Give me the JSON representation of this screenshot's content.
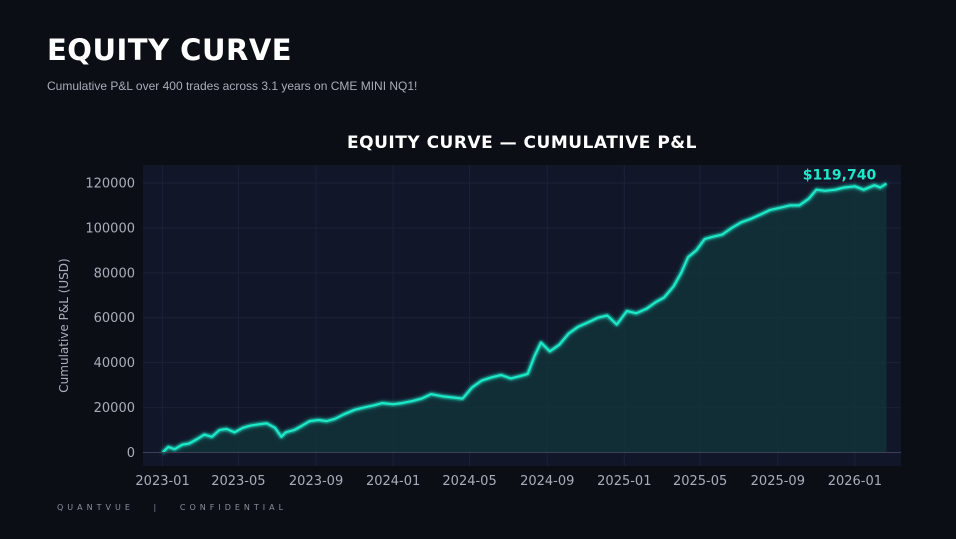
{
  "header": {
    "title": "EQUITY CURVE",
    "subtitle": "Cumulative P&L over 400 trades across 3.1 years on CME MINI NQ1!"
  },
  "footer": {
    "brand": "QUANTVUE",
    "separator": "|",
    "tag": "CONFIDENTIAL"
  },
  "colors": {
    "background": "#0b0e15",
    "plot_background": "#121629",
    "line": "#1de9c8",
    "fill": "#123338",
    "grid": "#1c2236",
    "tick_label": "#a9adb8",
    "annotation": "#1de9c8"
  },
  "chart_data": {
    "type": "line",
    "title": "EQUITY CURVE — CUMULATIVE P&L",
    "xlabel": "",
    "ylabel": "Cumulative P&L (USD)",
    "x_ticks": [
      "2023-01",
      "2023-05",
      "2023-09",
      "2024-01",
      "2024-05",
      "2024-09",
      "2025-01",
      "2025-05",
      "2025-09",
      "2026-01"
    ],
    "y_ticks": [
      0,
      20000,
      40000,
      60000,
      80000,
      100000,
      120000
    ],
    "xlim": [
      "2022-12-01",
      "2026-03-15"
    ],
    "ylim": [
      -6000,
      128000
    ],
    "grid": true,
    "fill_under": true,
    "final_annotation": "$119,740",
    "series": [
      {
        "x": [
          "2023-01-01",
          "2023-01-10",
          "2023-01-20",
          "2023-02-01",
          "2023-02-12",
          "2023-02-25",
          "2023-03-08",
          "2023-03-20",
          "2023-04-01",
          "2023-04-12",
          "2023-04-25",
          "2023-05-08",
          "2023-05-20",
          "2023-06-01",
          "2023-06-15",
          "2023-06-28",
          "2023-07-08",
          "2023-07-15",
          "2023-07-28",
          "2023-08-10",
          "2023-08-22",
          "2023-09-05",
          "2023-09-18",
          "2023-10-01",
          "2023-10-15",
          "2023-11-01",
          "2023-11-15",
          "2023-12-01",
          "2023-12-15",
          "2024-01-01",
          "2024-01-15",
          "2024-02-01",
          "2024-02-15",
          "2024-03-01",
          "2024-03-20",
          "2024-04-05",
          "2024-04-20",
          "2024-05-05",
          "2024-05-20",
          "2024-06-05",
          "2024-06-20",
          "2024-07-05",
          "2024-07-20",
          "2024-08-01",
          "2024-08-12",
          "2024-08-22",
          "2024-09-05",
          "2024-09-20",
          "2024-10-05",
          "2024-10-20",
          "2024-11-05",
          "2024-11-20",
          "2024-12-05",
          "2024-12-20",
          "2025-01-05",
          "2025-01-20",
          "2025-02-05",
          "2025-02-20",
          "2025-03-05",
          "2025-03-20",
          "2025-04-01",
          "2025-04-12",
          "2025-04-25",
          "2025-05-08",
          "2025-05-20",
          "2025-06-05",
          "2025-06-20",
          "2025-07-05",
          "2025-07-20",
          "2025-08-05",
          "2025-08-20",
          "2025-09-05",
          "2025-09-20",
          "2025-10-05",
          "2025-10-20",
          "2025-11-01",
          "2025-11-15",
          "2025-12-01",
          "2025-12-15",
          "2026-01-01",
          "2026-01-15",
          "2026-02-01",
          "2026-02-10",
          "2026-02-20"
        ],
        "y": [
          0,
          2500,
          1500,
          3500,
          4000,
          6000,
          8000,
          7000,
          10000,
          10500,
          9000,
          11000,
          12000,
          12500,
          13000,
          11000,
          7000,
          9000,
          10000,
          12000,
          14000,
          14500,
          14000,
          15000,
          17000,
          19000,
          20000,
          21000,
          22000,
          21500,
          22000,
          23000,
          24000,
          26000,
          25000,
          24500,
          24000,
          29000,
          32000,
          33500,
          34500,
          33000,
          34000,
          35000,
          43000,
          49000,
          45000,
          48000,
          53000,
          56000,
          58000,
          60000,
          61000,
          57000,
          63000,
          62000,
          64000,
          67000,
          69000,
          74000,
          80000,
          87000,
          90000,
          95000,
          96000,
          97000,
          100000,
          102500,
          104000,
          106000,
          108000,
          109000,
          110000,
          110000,
          113000,
          117000,
          116500,
          117000,
          118000,
          118500,
          117000,
          119000,
          118000,
          119740
        ]
      }
    ]
  }
}
